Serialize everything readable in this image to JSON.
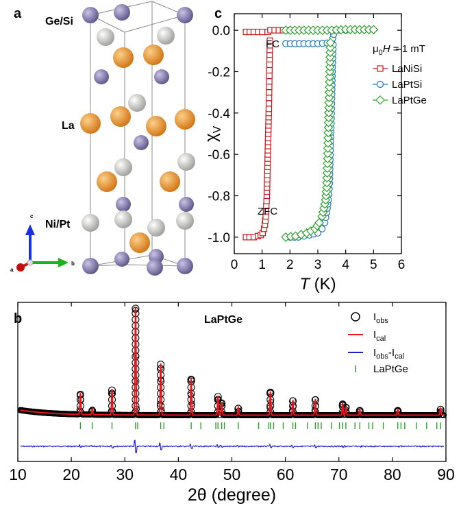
{
  "panels": {
    "a": {
      "letter": "a",
      "labels": {
        "gesi": "Ge/Si",
        "la": "La",
        "nipt": "Ni/Pt"
      },
      "axes": {
        "a": "a",
        "b": "b",
        "c": "c"
      },
      "colors": {
        "gesi": "#7f77a6",
        "la": "#e8881e",
        "nipt": "#c4c4c0"
      }
    },
    "c": {
      "letter": "c",
      "annotations": {
        "fc": "FC",
        "zfc": "ZFC",
        "field": "μ0H = 1 mT"
      }
    },
    "b": {
      "letter": "b",
      "title": "LaPtGe"
    }
  },
  "chart_data": [
    {
      "type": "scatter",
      "panel": "c",
      "xlabel": "T (K)",
      "ylabel": "χV",
      "xlim": [
        0,
        6
      ],
      "ylim": [
        -1.08,
        0.08
      ],
      "xticks": [
        0,
        1,
        2,
        3,
        4,
        5,
        6
      ],
      "yticks": [
        0.0,
        -0.2,
        -0.4,
        -0.6,
        -0.8,
        -1.0
      ],
      "legend_position": "right",
      "series": [
        {
          "name": "LaNiSi",
          "color": "#c8161d",
          "marker": "square",
          "zfc": [
            [
              0.42,
              -1.0
            ],
            [
              0.55,
              -1.0
            ],
            [
              0.7,
              -1.0
            ],
            [
              0.85,
              -0.995
            ],
            [
              0.95,
              -0.99
            ],
            [
              1.02,
              -0.98
            ],
            [
              1.07,
              -0.96
            ],
            [
              1.1,
              -0.94
            ],
            [
              1.13,
              -0.9
            ],
            [
              1.15,
              -0.85
            ],
            [
              1.17,
              -0.8
            ],
            [
              1.18,
              -0.74
            ],
            [
              1.19,
              -0.68
            ],
            [
              1.2,
              -0.62
            ],
            [
              1.21,
              -0.56
            ],
            [
              1.22,
              -0.5
            ],
            [
              1.23,
              -0.44
            ],
            [
              1.24,
              -0.38
            ],
            [
              1.25,
              -0.3
            ],
            [
              1.26,
              -0.22
            ],
            [
              1.27,
              -0.14
            ],
            [
              1.28,
              -0.05
            ]
          ],
          "fc": [
            [
              0.42,
              -0.008
            ],
            [
              0.7,
              -0.008
            ],
            [
              1.0,
              -0.008
            ],
            [
              1.2,
              -0.008
            ],
            [
              1.3,
              0.0
            ],
            [
              1.6,
              0.0
            ],
            [
              1.9,
              0.0
            ]
          ]
        },
        {
          "name": "LaPtSi",
          "color": "#1f77b4",
          "marker": "circle",
          "zfc": [
            [
              1.85,
              -1.0
            ],
            [
              2.3,
              -1.0
            ],
            [
              2.7,
              -0.99
            ],
            [
              3.0,
              -0.98
            ],
            [
              3.15,
              -0.96
            ],
            [
              3.25,
              -0.93
            ],
            [
              3.32,
              -0.88
            ],
            [
              3.38,
              -0.82
            ],
            [
              3.42,
              -0.74
            ],
            [
              3.45,
              -0.58
            ],
            [
              3.48,
              -0.45
            ],
            [
              3.5,
              -0.33
            ],
            [
              3.52,
              -0.2
            ],
            [
              3.55,
              -0.07
            ]
          ],
          "fc": [
            [
              1.85,
              -0.065
            ],
            [
              2.5,
              -0.065
            ],
            [
              3.0,
              -0.065
            ],
            [
              3.5,
              -0.06
            ],
            [
              3.6,
              0.0
            ],
            [
              4.0,
              0.0
            ]
          ]
        },
        {
          "name": "LaPtGe",
          "color": "#2ca02c",
          "marker": "diamond",
          "zfc": [
            [
              1.85,
              -1.0
            ],
            [
              2.2,
              -0.995
            ],
            [
              2.6,
              -0.98
            ],
            [
              2.9,
              -0.96
            ],
            [
              3.05,
              -0.93
            ],
            [
              3.15,
              -0.9
            ],
            [
              3.22,
              -0.86
            ],
            [
              3.28,
              -0.82
            ],
            [
              3.32,
              -0.76
            ],
            [
              3.35,
              -0.62
            ],
            [
              3.38,
              -0.47
            ],
            [
              3.4,
              -0.35
            ],
            [
              3.43,
              -0.2
            ],
            [
              3.45,
              -0.06
            ]
          ],
          "fc": [
            [
              1.85,
              0.0
            ],
            [
              2.5,
              0.0
            ],
            [
              3.0,
              0.0
            ],
            [
              3.5,
              0.0
            ],
            [
              4.0,
              0.003
            ],
            [
              4.5,
              0.003
            ],
            [
              5.0,
              0.003
            ]
          ]
        }
      ]
    },
    {
      "type": "line",
      "panel": "b",
      "xlabel": "2θ (degree)",
      "ylabel": "",
      "xlim": [
        10,
        90
      ],
      "xticks": [
        10,
        20,
        30,
        40,
        50,
        60,
        70,
        80,
        90
      ],
      "legend_position": "top-right",
      "series": [
        {
          "name": "Iobs",
          "color": "#000000",
          "marker": "circle"
        },
        {
          "name": "Ical",
          "color": "#e8141c"
        },
        {
          "name": "Iobs-Ical",
          "color": "#1f1fd0"
        },
        {
          "name": "LaPtGe",
          "color": "#2ca02c",
          "marker": "tick"
        }
      ],
      "peaks": [
        [
          21.7,
          0.2
        ],
        [
          23.9,
          0.05
        ],
        [
          27.6,
          0.24
        ],
        [
          32.0,
          1.0
        ],
        [
          36.7,
          0.48
        ],
        [
          42.4,
          0.34
        ],
        [
          47.4,
          0.18
        ],
        [
          48.1,
          0.12
        ],
        [
          51.2,
          0.07
        ],
        [
          57.2,
          0.22
        ],
        [
          61.4,
          0.14
        ],
        [
          65.6,
          0.15
        ],
        [
          70.7,
          0.11
        ],
        [
          71.3,
          0.08
        ],
        [
          73.9,
          0.05
        ],
        [
          81.0,
          0.05
        ],
        [
          89.0,
          0.06
        ]
      ],
      "reflections": [
        21.7,
        23.9,
        27.6,
        32.0,
        32.4,
        36.7,
        37.3,
        42.4,
        44.2,
        47.0,
        47.4,
        48.1,
        48.6,
        51.2,
        55.0,
        56.9,
        57.2,
        57.8,
        59.6,
        61.4,
        61.9,
        64.1,
        65.6,
        66.1,
        66.7,
        68.6,
        70.1,
        70.7,
        71.3,
        73.0,
        73.9,
        75.6,
        76.3,
        78.3,
        81.0,
        81.6,
        82.3,
        84.5,
        86.4,
        88.3,
        89.0
      ]
    }
  ]
}
